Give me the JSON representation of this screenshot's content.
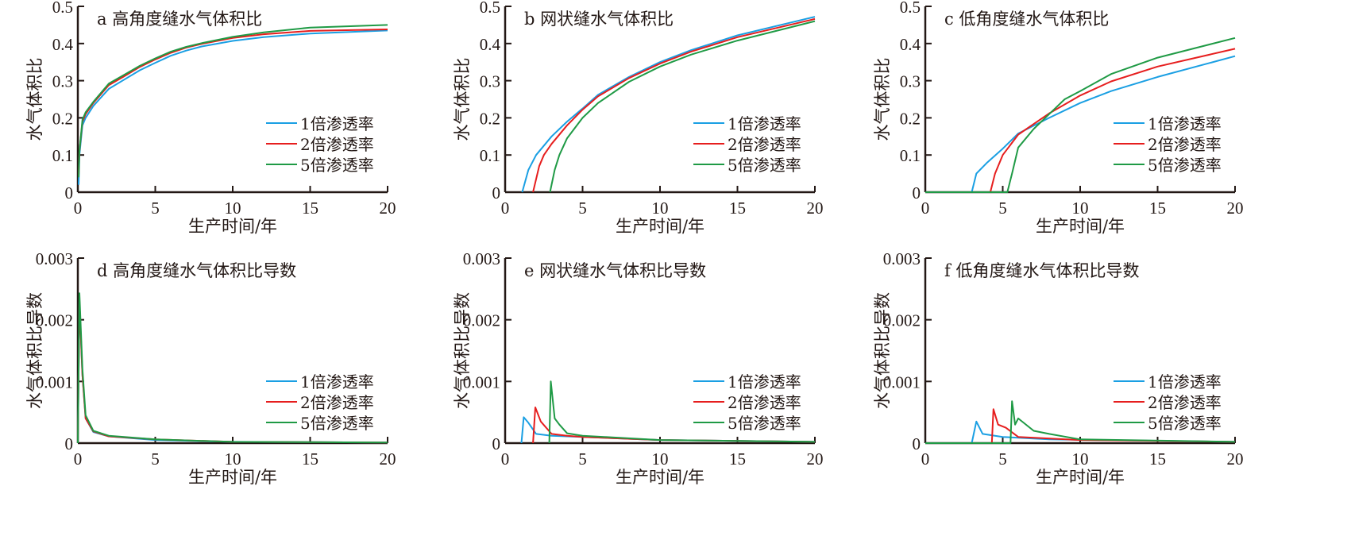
{
  "colors": {
    "s1": "#1a9fe3",
    "s2": "#e61e1e",
    "s3": "#1f9a45"
  },
  "legend": [
    "1倍渗透率",
    "2倍渗透率",
    "5倍渗透率"
  ],
  "chart_data": [
    {
      "type": "line",
      "title": "a 高角度缝水气体积比",
      "xlabel": "生产时间/年",
      "ylabel": "水气体积比",
      "xlim": [
        0,
        20
      ],
      "ylim": [
        0,
        0.5
      ],
      "xticks": [
        0,
        5,
        10,
        15,
        20
      ],
      "yticks": [
        "0",
        "0.1",
        "0.2",
        "0.3",
        "0.4",
        "0.5"
      ],
      "legend_pos": "right",
      "series": [
        {
          "name": "1倍渗透率",
          "points": [
            [
              0.05,
              0.02
            ],
            [
              0.1,
              0.1
            ],
            [
              0.3,
              0.18
            ],
            [
              0.5,
              0.2
            ],
            [
              1,
              0.232
            ],
            [
              2,
              0.278
            ],
            [
              3,
              0.303
            ],
            [
              4,
              0.328
            ],
            [
              5,
              0.348
            ],
            [
              6,
              0.367
            ],
            [
              7,
              0.381
            ],
            [
              8,
              0.392
            ],
            [
              10,
              0.407
            ],
            [
              12,
              0.417
            ],
            [
              15,
              0.427
            ],
            [
              20,
              0.435
            ]
          ]
        },
        {
          "name": "2倍渗透率",
          "points": [
            [
              0.05,
              0.045
            ],
            [
              0.1,
              0.11
            ],
            [
              0.3,
              0.19
            ],
            [
              0.5,
              0.21
            ],
            [
              1,
              0.24
            ],
            [
              2,
              0.288
            ],
            [
              3,
              0.312
            ],
            [
              4,
              0.337
            ],
            [
              5,
              0.357
            ],
            [
              6,
              0.375
            ],
            [
              7,
              0.389
            ],
            [
              8,
              0.399
            ],
            [
              10,
              0.415
            ],
            [
              12,
              0.425
            ],
            [
              15,
              0.434
            ],
            [
              20,
              0.438
            ]
          ]
        },
        {
          "name": "5倍渗透率",
          "points": [
            [
              0.05,
              0.04
            ],
            [
              0.1,
              0.11
            ],
            [
              0.3,
              0.195
            ],
            [
              0.5,
              0.215
            ],
            [
              1,
              0.243
            ],
            [
              2,
              0.292
            ],
            [
              3,
              0.316
            ],
            [
              4,
              0.34
            ],
            [
              5,
              0.36
            ],
            [
              6,
              0.378
            ],
            [
              7,
              0.391
            ],
            [
              8,
              0.401
            ],
            [
              10,
              0.418
            ],
            [
              12,
              0.43
            ],
            [
              15,
              0.443
            ],
            [
              20,
              0.45
            ]
          ]
        }
      ]
    },
    {
      "type": "line",
      "title": "b 网状缝水气体积比",
      "xlabel": "生产时间/年",
      "ylabel": "水气体积比",
      "xlim": [
        0,
        20
      ],
      "ylim": [
        0,
        0.5
      ],
      "xticks": [
        0,
        5,
        10,
        15,
        20
      ],
      "yticks": [
        "0",
        "0.1",
        "0.2",
        "0.3",
        "0.4",
        "0.5"
      ],
      "legend_pos": "right",
      "series": [
        {
          "name": "1倍渗透率",
          "points": [
            [
              1.1,
              0
            ],
            [
              1.5,
              0.06
            ],
            [
              2,
              0.1
            ],
            [
              3,
              0.15
            ],
            [
              4,
              0.19
            ],
            [
              5,
              0.225
            ],
            [
              6,
              0.262
            ],
            [
              8,
              0.31
            ],
            [
              10,
              0.35
            ],
            [
              12,
              0.382
            ],
            [
              15,
              0.422
            ],
            [
              20,
              0.472
            ]
          ]
        },
        {
          "name": "2倍渗透率",
          "points": [
            [
              1.8,
              0
            ],
            [
              2.2,
              0.07
            ],
            [
              2.5,
              0.1
            ],
            [
              3,
              0.13
            ],
            [
              4,
              0.18
            ],
            [
              5,
              0.222
            ],
            [
              6,
              0.258
            ],
            [
              8,
              0.307
            ],
            [
              10,
              0.346
            ],
            [
              12,
              0.378
            ],
            [
              15,
              0.417
            ],
            [
              20,
              0.466
            ]
          ]
        },
        {
          "name": "5倍渗透率",
          "points": [
            [
              2.9,
              0
            ],
            [
              3.2,
              0.06
            ],
            [
              3.5,
              0.1
            ],
            [
              4,
              0.145
            ],
            [
              5,
              0.2
            ],
            [
              6,
              0.24
            ],
            [
              8,
              0.297
            ],
            [
              10,
              0.338
            ],
            [
              12,
              0.37
            ],
            [
              15,
              0.408
            ],
            [
              20,
              0.46
            ]
          ]
        }
      ]
    },
    {
      "type": "line",
      "title": "c 低角度缝水气体积比",
      "xlabel": "生产时间/年",
      "ylabel": "水气体积比",
      "xlim": [
        0,
        20
      ],
      "ylim": [
        0,
        0.5
      ],
      "xticks": [
        0,
        5,
        10,
        15,
        20
      ],
      "yticks": [
        "0",
        "0.1",
        "0.2",
        "0.3",
        "0.4",
        "0.5"
      ],
      "legend_pos": "right",
      "series": [
        {
          "name": "1倍渗透率",
          "points": [
            [
              0,
              0
            ],
            [
              3,
              0
            ],
            [
              3.3,
              0.05
            ],
            [
              4,
              0.08
            ],
            [
              5,
              0.117
            ],
            [
              6,
              0.158
            ],
            [
              8,
              0.2
            ],
            [
              10,
              0.24
            ],
            [
              12,
              0.272
            ],
            [
              15,
              0.31
            ],
            [
              20,
              0.366
            ]
          ]
        },
        {
          "name": "2倍渗透率",
          "points": [
            [
              0,
              0
            ],
            [
              4.2,
              0
            ],
            [
              4.5,
              0.05
            ],
            [
              5,
              0.1
            ],
            [
              6,
              0.155
            ],
            [
              8,
              0.212
            ],
            [
              10,
              0.26
            ],
            [
              12,
              0.298
            ],
            [
              15,
              0.338
            ],
            [
              20,
              0.386
            ]
          ]
        },
        {
          "name": "5倍渗透率",
          "points": [
            [
              0,
              0
            ],
            [
              5.3,
              0
            ],
            [
              5.6,
              0.05
            ],
            [
              6,
              0.12
            ],
            [
              7,
              0.17
            ],
            [
              8,
              0.21
            ],
            [
              9,
              0.25
            ],
            [
              10,
              0.272
            ],
            [
              12,
              0.318
            ],
            [
              15,
              0.362
            ],
            [
              20,
              0.415
            ]
          ]
        }
      ]
    },
    {
      "type": "line",
      "title": "d 高角度缝水气体积比导数",
      "xlabel": "生产时间/年",
      "ylabel": "水气体积比导数",
      "xlim": [
        0,
        20
      ],
      "ylim": [
        0,
        0.003
      ],
      "xticks": [
        0,
        5,
        10,
        15,
        20
      ],
      "yticks": [
        "0",
        "0.001",
        "0.002",
        "0.003"
      ],
      "legend_pos": "right",
      "series": [
        {
          "name": "1倍渗透率",
          "points": [
            [
              0,
              0
            ],
            [
              0.1,
              0.0023
            ],
            [
              0.3,
              0.0011
            ],
            [
              0.5,
              0.0004
            ],
            [
              1,
              0.00018
            ],
            [
              2,
              0.00011
            ],
            [
              5,
              5e-05
            ],
            [
              10,
              2e-05
            ],
            [
              20,
              1e-05
            ]
          ]
        },
        {
          "name": "2倍渗透率",
          "points": [
            [
              0,
              0
            ],
            [
              0.1,
              0.0023
            ],
            [
              0.3,
              0.0011
            ],
            [
              0.5,
              0.0004
            ],
            [
              1,
              0.00019
            ],
            [
              2,
              0.00011
            ],
            [
              5,
              6e-05
            ],
            [
              10,
              2e-05
            ],
            [
              20,
              1e-05
            ]
          ]
        },
        {
          "name": "5倍渗透率",
          "points": [
            [
              0,
              0
            ],
            [
              0.1,
              0.00243
            ],
            [
              0.3,
              0.0012
            ],
            [
              0.5,
              0.00045
            ],
            [
              1,
              0.0002
            ],
            [
              2,
              0.00012
            ],
            [
              5,
              6e-05
            ],
            [
              10,
              2e-05
            ],
            [
              20,
              1e-05
            ]
          ]
        }
      ]
    },
    {
      "type": "line",
      "title": "e 网状缝水气体积比导数",
      "xlabel": "生产时间/年",
      "ylabel": "水气体积比导数",
      "xlim": [
        0,
        20
      ],
      "ylim": [
        0,
        0.003
      ],
      "xticks": [
        0,
        5,
        10,
        15,
        20
      ],
      "yticks": [
        "0",
        "0.001",
        "0.002",
        "0.003"
      ],
      "legend_pos": "right",
      "series": [
        {
          "name": "1倍渗透率",
          "points": [
            [
              1.05,
              0
            ],
            [
              1.2,
              0.00042
            ],
            [
              1.5,
              0.00033
            ],
            [
              2,
              0.00015
            ],
            [
              3,
              0.00012
            ],
            [
              5,
              0.0001
            ],
            [
              10,
              5e-05
            ],
            [
              20,
              2e-05
            ]
          ]
        },
        {
          "name": "2倍渗透率",
          "points": [
            [
              1.8,
              0
            ],
            [
              1.95,
              0.00058
            ],
            [
              2.3,
              0.00035
            ],
            [
              3,
              0.00015
            ],
            [
              4,
              0.00012
            ],
            [
              5,
              0.0001
            ],
            [
              10,
              5e-05
            ],
            [
              20,
              2e-05
            ]
          ]
        },
        {
          "name": "5倍渗透率",
          "points": [
            [
              2.85,
              0
            ],
            [
              2.95,
              0.001
            ],
            [
              3.2,
              0.0004
            ],
            [
              3.5,
              0.0003
            ],
            [
              4,
              0.00016
            ],
            [
              5,
              0.00012
            ],
            [
              10,
              5e-05
            ],
            [
              20,
              2e-05
            ]
          ]
        }
      ]
    },
    {
      "type": "line",
      "title": "f 低角度缝水气体积比导数",
      "xlabel": "生产时间/年",
      "ylabel": "水气体积比导数",
      "xlim": [
        0,
        20
      ],
      "ylim": [
        0,
        0.003
      ],
      "xticks": [
        0,
        5,
        10,
        15,
        20
      ],
      "yticks": [
        "0",
        "0.001",
        "0.002",
        "0.003"
      ],
      "legend_pos": "right",
      "series": [
        {
          "name": "1倍渗透率",
          "points": [
            [
              0,
              0
            ],
            [
              3,
              0
            ],
            [
              3.3,
              0.00035
            ],
            [
              3.7,
              0.00015
            ],
            [
              5,
              0.0001
            ],
            [
              8,
              6e-05
            ],
            [
              20,
              2e-05
            ]
          ]
        },
        {
          "name": "2倍渗透率",
          "points": [
            [
              0,
              0
            ],
            [
              4.3,
              0
            ],
            [
              4.4,
              0.00055
            ],
            [
              4.7,
              0.0003
            ],
            [
              5.2,
              0.00025
            ],
            [
              6,
              0.0001
            ],
            [
              10,
              5e-05
            ],
            [
              20,
              2e-05
            ]
          ]
        },
        {
          "name": "5倍渗透率",
          "points": [
            [
              0,
              0
            ],
            [
              5.5,
              0
            ],
            [
              5.6,
              0.00068
            ],
            [
              5.8,
              0.0003
            ],
            [
              6,
              0.0004
            ],
            [
              7,
              0.0002
            ],
            [
              8,
              0.00015
            ],
            [
              10,
              6e-05
            ],
            [
              20,
              2e-05
            ]
          ]
        }
      ]
    }
  ]
}
